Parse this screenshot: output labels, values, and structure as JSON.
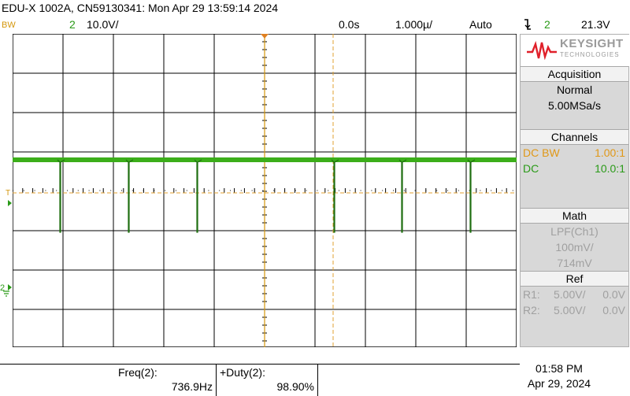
{
  "titlebar": {
    "text": "EDU-X 1002A, CN59130341: Mon Apr 29 13:59:14 2024"
  },
  "status": {
    "ch1_label": "BW",
    "ch2_number": "2",
    "ch2_scale": "10.0V/",
    "time_position": "0.0s",
    "time_scale": "1.000µ/",
    "trigger_mode": "Auto",
    "trigger_icon": "falling-edge-icon",
    "trigger_source": "2",
    "trigger_level": "21.3V"
  },
  "panel": {
    "logo": {
      "name": "KEYSIGHT",
      "sub": "TECHNOLOGIES"
    },
    "acquisition": {
      "header": "Acquisition",
      "mode": "Normal",
      "rate": "5.00MSa/s"
    },
    "channels": {
      "header": "Channels",
      "rows": [
        {
          "label": "DC BW",
          "value": "1.00:1"
        },
        {
          "label": "DC",
          "value": "10.0:1"
        }
      ]
    },
    "math": {
      "header": "Math",
      "func": "LPF(Ch1)",
      "scale": "100mV/",
      "offset": "714mV"
    },
    "ref": {
      "header": "Ref",
      "rows": [
        {
          "label": "R1:",
          "scale": "5.00V/",
          "offset": "0.0V"
        },
        {
          "label": "R2:",
          "scale": "5.00V/",
          "offset": "0.0V"
        }
      ]
    }
  },
  "measurements": [
    {
      "label": "Freq(2):",
      "value": "736.9Hz"
    },
    {
      "label": "+Duty(2):",
      "value": "98.90%"
    }
  ],
  "clock": {
    "time": "01:58 PM",
    "date": "Apr 29, 2024"
  },
  "colors": {
    "ch1": "#e09818",
    "ch2": "#2a9a18",
    "trigger": "#d4960a"
  }
}
